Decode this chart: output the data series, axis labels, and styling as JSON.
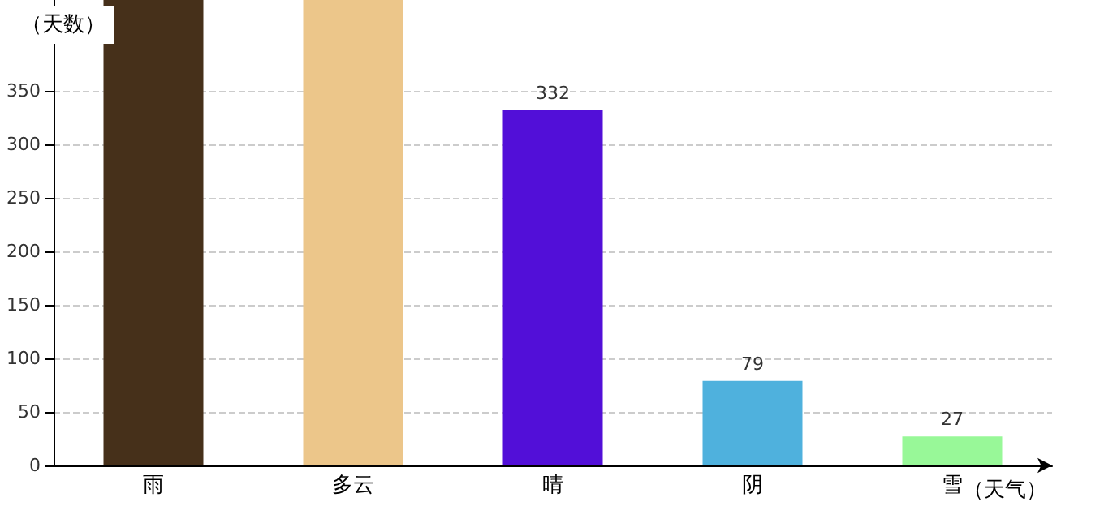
{
  "chart_data": {
    "type": "bar",
    "xlabel": "（天气）",
    "ylabel": "（天数）",
    "categories": [
      "雨",
      "多云",
      "晴",
      "阴",
      "雪"
    ],
    "values": [
      435,
      435,
      332,
      79,
      27
    ],
    "colors": [
      "#46301a",
      "#ecc68a",
      "#520fd8",
      "#4fb1dd",
      "#98f898"
    ],
    "value_labels": [
      null,
      null,
      "332",
      "79",
      "27"
    ],
    "ylim": [
      0,
      435
    ],
    "yticks": [
      0,
      50,
      100,
      150,
      200,
      250,
      300,
      350
    ],
    "grid": "y"
  }
}
